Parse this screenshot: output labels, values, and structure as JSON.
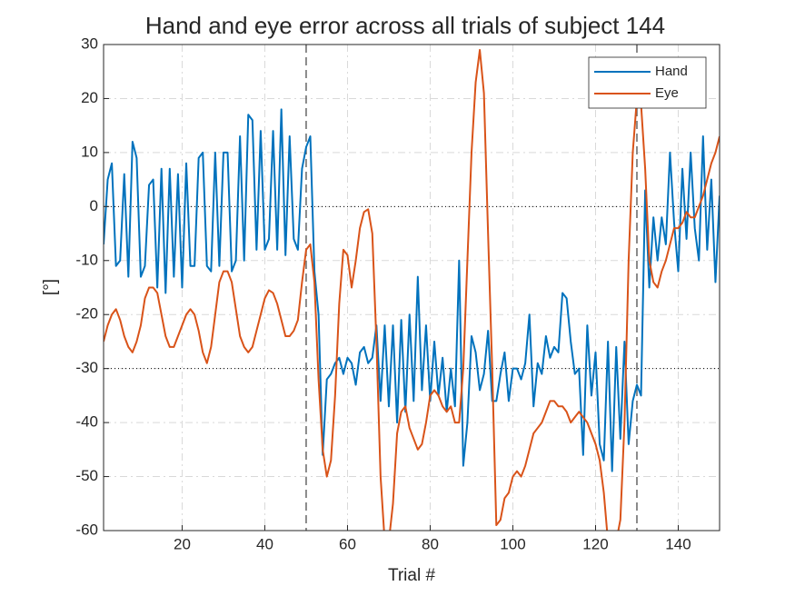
{
  "chart_data": {
    "type": "line",
    "title": "Hand and eye error across all trials of subject 144",
    "xlabel": "Trial #",
    "ylabel": "[°]",
    "x": [
      1,
      2,
      3,
      4,
      5,
      6,
      7,
      8,
      9,
      10,
      11,
      12,
      13,
      14,
      15,
      16,
      17,
      18,
      19,
      20,
      21,
      22,
      23,
      24,
      25,
      26,
      27,
      28,
      29,
      30,
      31,
      32,
      33,
      34,
      35,
      36,
      37,
      38,
      39,
      40,
      41,
      42,
      43,
      44,
      45,
      46,
      47,
      48,
      49,
      50,
      51,
      52,
      53,
      54,
      55,
      56,
      57,
      58,
      59,
      60,
      61,
      62,
      63,
      64,
      65,
      66,
      67,
      68,
      69,
      70,
      71,
      72,
      73,
      74,
      75,
      76,
      77,
      78,
      79,
      80,
      81,
      82,
      83,
      84,
      85,
      86,
      87,
      88,
      89,
      90,
      91,
      92,
      93,
      94,
      95,
      96,
      97,
      98,
      99,
      100,
      101,
      102,
      103,
      104,
      105,
      106,
      107,
      108,
      109,
      110,
      111,
      112,
      113,
      114,
      115,
      116,
      117,
      118,
      119,
      120,
      121,
      122,
      123,
      124,
      125,
      126,
      127,
      128,
      129,
      130,
      131,
      132,
      133,
      134,
      135,
      136,
      137,
      138,
      139,
      140,
      141,
      142,
      143,
      144,
      145,
      146,
      147,
      148,
      149,
      150
    ],
    "series": [
      {
        "name": "Hand",
        "color": "#0072bd",
        "values": [
          -7,
          5,
          8,
          -11,
          -10,
          6,
          -13,
          12,
          9,
          -13,
          -11,
          4,
          5,
          -15,
          7,
          -16,
          7,
          -13,
          6,
          -15,
          8,
          -11,
          -11,
          9,
          10,
          -11,
          -12,
          10,
          -11,
          10,
          10,
          -12,
          -10,
          13,
          -10,
          17,
          16,
          -8,
          14,
          -8,
          -6,
          14,
          -8,
          18,
          -9,
          13,
          -6,
          -8,
          7,
          11,
          13,
          -12,
          -20,
          -46,
          -32,
          -31,
          -29,
          -28,
          -31,
          -28,
          -29,
          -33,
          -27,
          -26,
          -29,
          -28,
          -22,
          -36,
          -22,
          -37,
          -22,
          -40,
          -21,
          -38,
          -20,
          -36,
          -13,
          -34,
          -22,
          -36,
          -25,
          -35,
          -28,
          -38,
          -30,
          -37,
          -10,
          -48,
          -40,
          -24,
          -27,
          -34,
          -31,
          -23,
          -36,
          -36,
          -31,
          -27,
          -36,
          -30,
          -30,
          -32,
          -29,
          -20,
          -37,
          -29,
          -31,
          -24,
          -28,
          -26,
          -27,
          -16,
          -17,
          -25,
          -31,
          -30,
          -46,
          -22,
          -35,
          -27,
          -44,
          -47,
          -25,
          -49,
          -26,
          -43,
          -25,
          -44,
          -36,
          -33,
          -35,
          3,
          -15,
          -2,
          -10,
          -2,
          -7,
          10,
          -3,
          -12,
          7,
          -6,
          10,
          -4,
          -10,
          13,
          -8,
          5,
          -14,
          2
        ]
      },
      {
        "name": "Eye",
        "color": "#d95319",
        "values": [
          -25,
          -22,
          -20,
          -19,
          -21,
          -24,
          -26,
          -27,
          -25,
          -22,
          -17,
          -15,
          -15,
          -16,
          -20,
          -24,
          -26,
          -26,
          -24,
          -22,
          -20,
          -19,
          -20,
          -23,
          -27,
          -29,
          -26,
          -20,
          -14,
          -12,
          -12,
          -14,
          -19,
          -24,
          -26,
          -27,
          -26,
          -23,
          -20,
          -17,
          -15.5,
          -16,
          -18,
          -21,
          -24,
          -24,
          -23,
          -21,
          -14,
          -8,
          -7,
          -14,
          -32,
          -45,
          -50,
          -47,
          -35,
          -18,
          -8,
          -9,
          -15,
          -10,
          -4,
          -1,
          -0.5,
          -5,
          -25,
          -50,
          -62,
          -62,
          -55,
          -42,
          -38,
          -37,
          -41,
          -43,
          -45,
          -44,
          -40,
          -35,
          -34,
          -35,
          -37,
          -38,
          -37,
          -40,
          -40,
          -30,
          -10,
          10,
          23,
          29,
          21,
          -5,
          -30,
          -59,
          -58,
          -54,
          -53,
          -50,
          -49,
          -50,
          -48,
          -45,
          -42,
          -41,
          -40,
          -38,
          -36,
          -36,
          -37,
          -37,
          -38,
          -40,
          -39,
          -38,
          -39,
          -40,
          -42,
          -44,
          -47,
          -53,
          -62,
          -62,
          -62,
          -58,
          -40,
          -10,
          10,
          20,
          19,
          7,
          -10,
          -14,
          -15,
          -12,
          -10,
          -7,
          -4,
          -4,
          -3,
          -1,
          -2,
          -2,
          0,
          2,
          5,
          8,
          10,
          13
        ]
      }
    ],
    "xlim": [
      1,
      150
    ],
    "ylim": [
      -60,
      30
    ],
    "xticks": [
      20,
      40,
      60,
      80,
      100,
      120,
      140
    ],
    "yticks": [
      -60,
      -50,
      -40,
      -30,
      -20,
      -10,
      0,
      10,
      20,
      30
    ],
    "vlines": [
      50,
      130
    ],
    "hlines": [
      0,
      -30
    ],
    "grid": true,
    "legend": "northeast"
  }
}
